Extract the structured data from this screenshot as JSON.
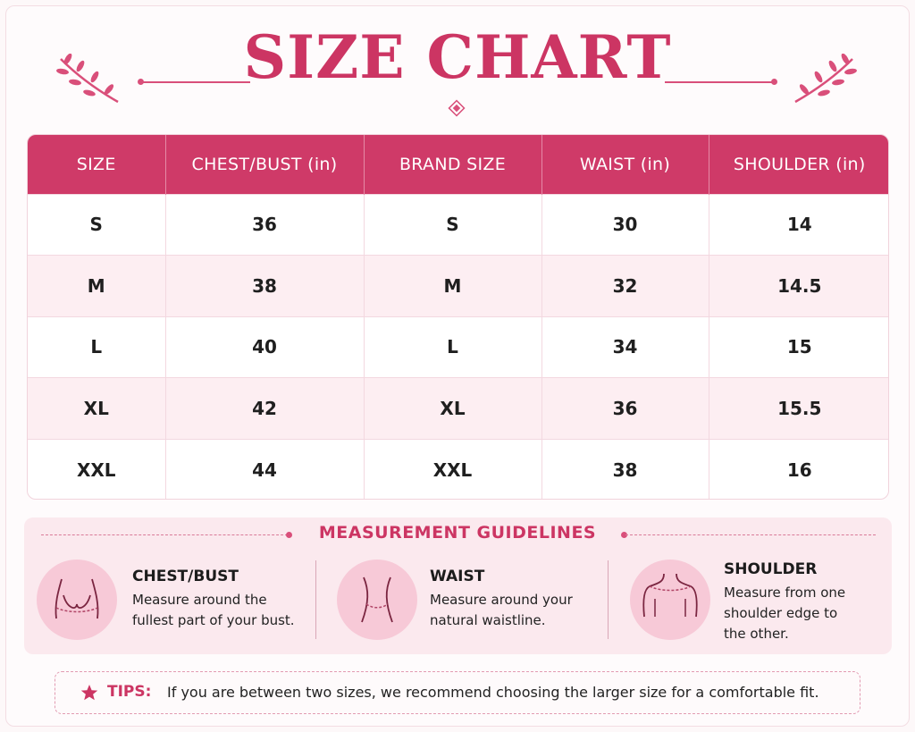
{
  "header": {
    "title": "SIZE CHART"
  },
  "table": {
    "columns": [
      "SIZE",
      "CHEST/BUST (in)",
      "BRAND SIZE",
      "WAIST (in)",
      "SHOULDER (in)"
    ],
    "rows": [
      [
        "S",
        "36",
        "S",
        "30",
        "14"
      ],
      [
        "M",
        "38",
        "M",
        "32",
        "14.5"
      ],
      [
        "L",
        "40",
        "L",
        "34",
        "15"
      ],
      [
        "XL",
        "42",
        "XL",
        "36",
        "15.5"
      ],
      [
        "XXL",
        "44",
        "XXL",
        "38",
        "16"
      ]
    ]
  },
  "guidelines": {
    "title": "MEASUREMENT GUIDELINES",
    "items": [
      {
        "icon": "chest-icon",
        "heading": "CHEST/BUST",
        "lines": [
          "Measure around the",
          "fullest part of your bust."
        ]
      },
      {
        "icon": "waist-icon",
        "heading": "WAIST",
        "lines": [
          "Measure around your",
          "natural waistline."
        ]
      },
      {
        "icon": "shoulder-icon",
        "heading": "SHOULDER",
        "lines": [
          "Measure from one",
          "shoulder edge to",
          "the other."
        ]
      }
    ]
  },
  "tips": {
    "label": "TIPS:",
    "text": "If you are between two sizes, we recommend choosing the larger size for a comfortable fit."
  },
  "colors": {
    "accent": "#cc3563",
    "header_bg": "#cf3a68",
    "row_alt": "#fdeef2",
    "panel_bg": "#fbe9ee",
    "icon_circle": "#f7c9d7"
  }
}
